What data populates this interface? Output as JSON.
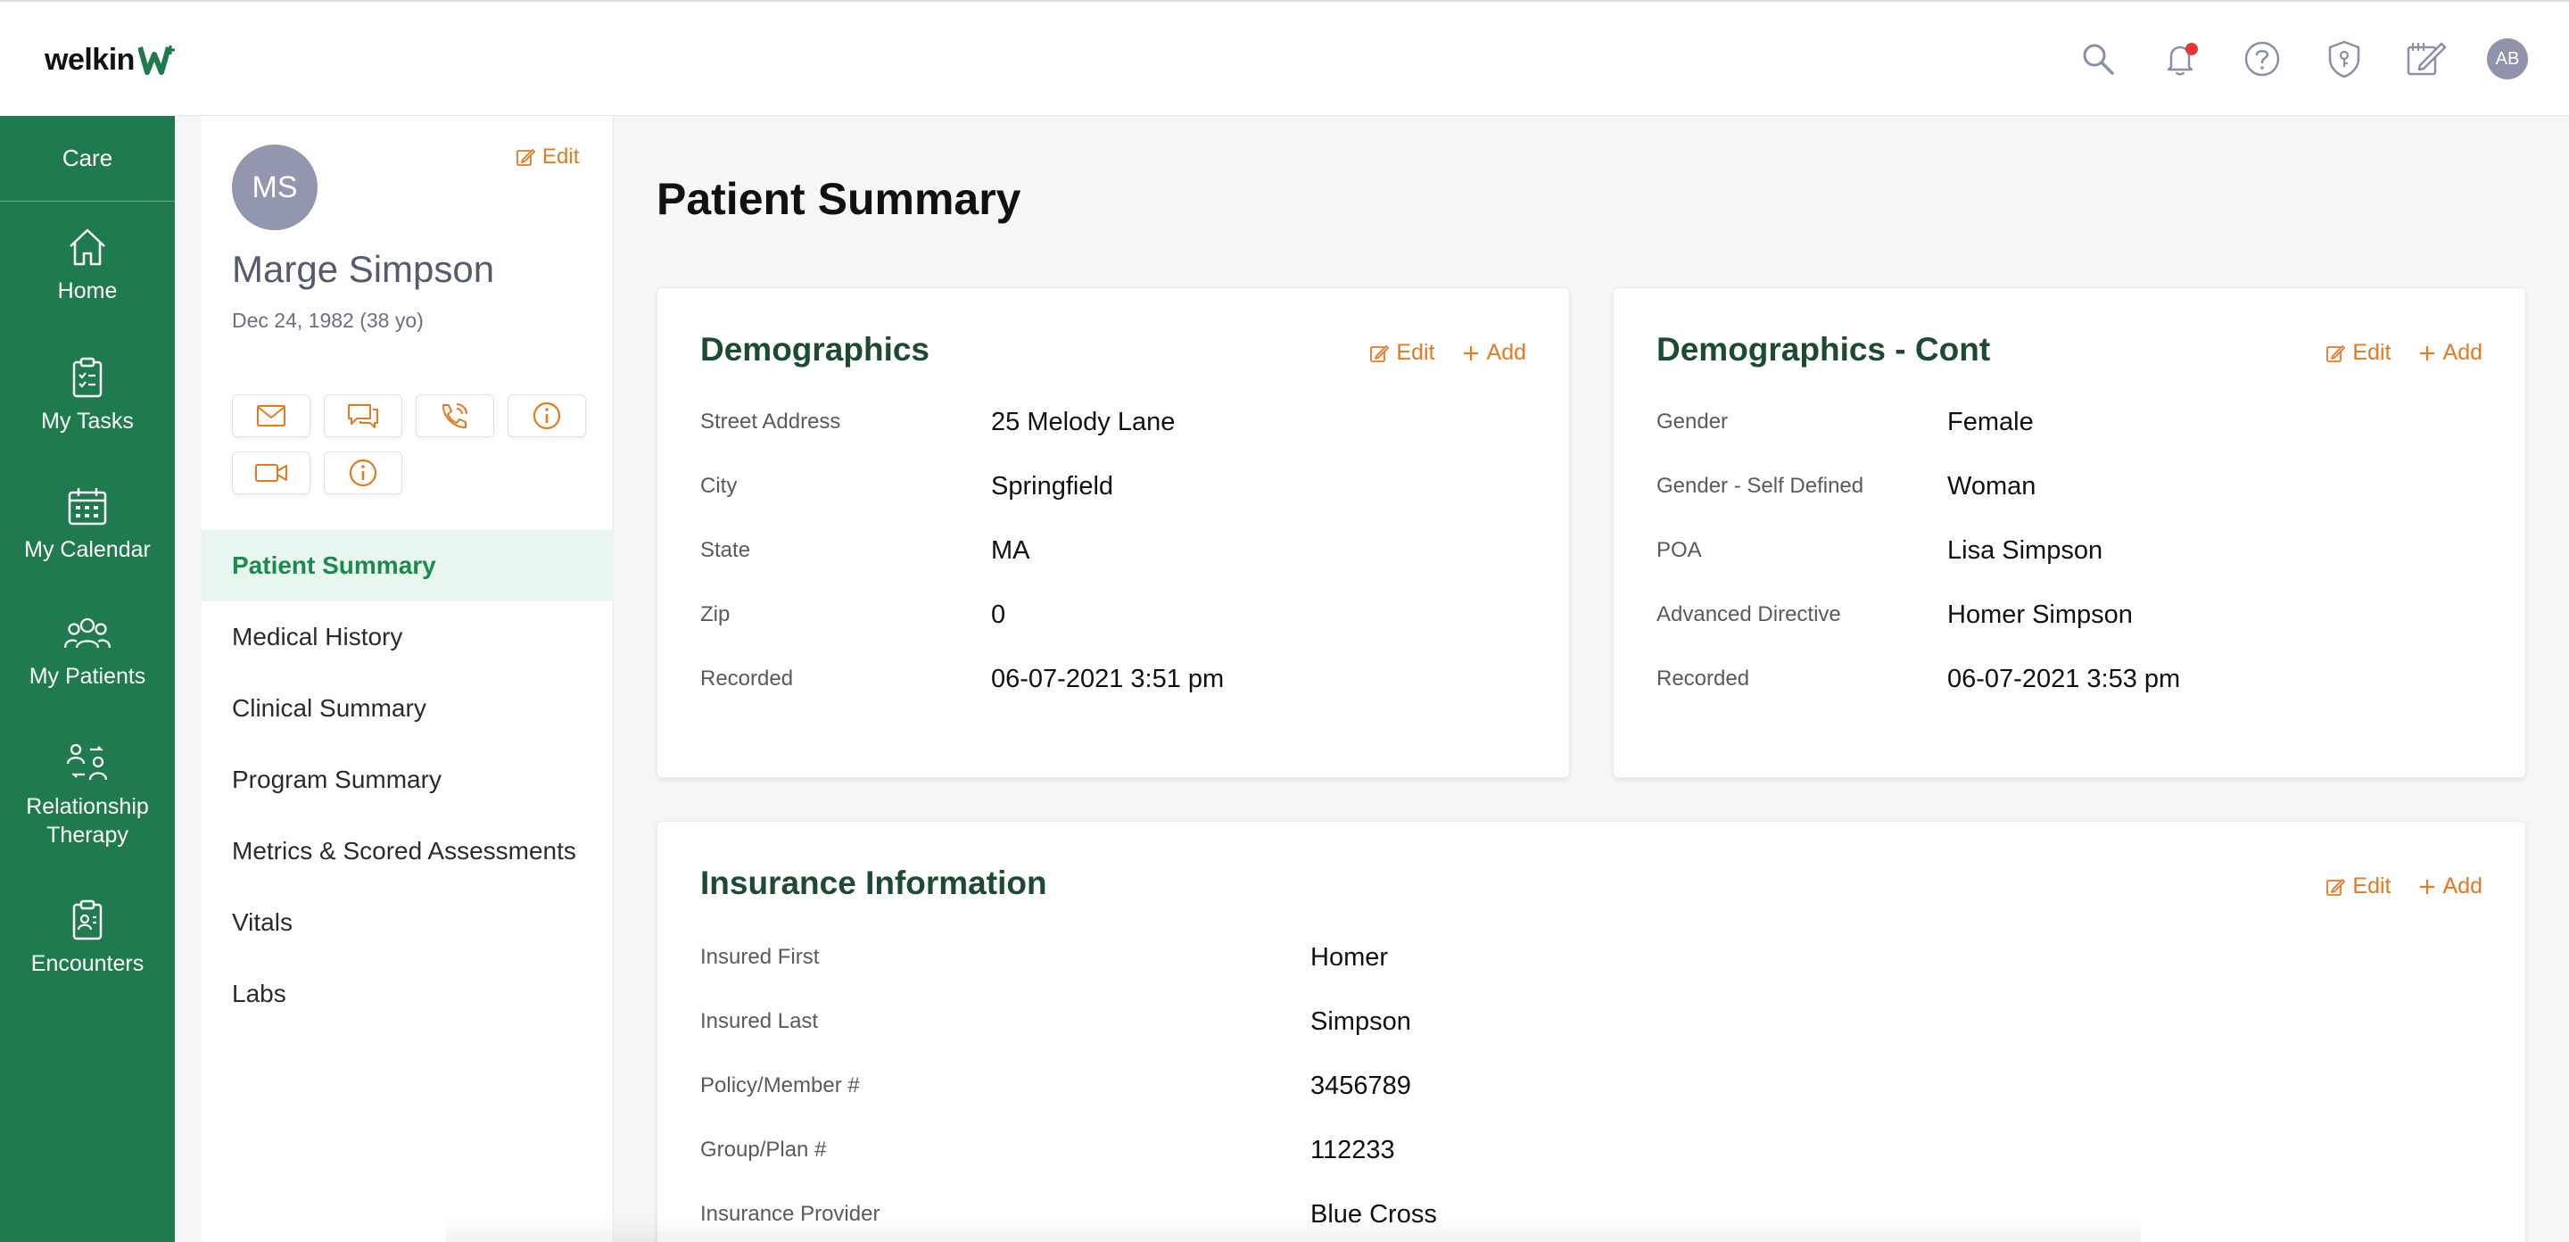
{
  "header": {
    "logo_text": "welkin",
    "icons": [
      "search-icon",
      "bell-icon",
      "help-icon",
      "shield-key-icon",
      "notepad-icon"
    ],
    "avatar_initials": "AB",
    "accent_color": "#1f7a4d",
    "notification_color": "#e53935"
  },
  "leftnav": {
    "title": "Care",
    "items": [
      {
        "label": "Home",
        "icon": "home-icon"
      },
      {
        "label": "My Tasks",
        "icon": "clipboard-icon"
      },
      {
        "label": "My Calendar",
        "icon": "calendar-icon"
      },
      {
        "label": "My Patients",
        "icon": "patients-icon"
      },
      {
        "label": "Relationship Therapy",
        "icon": "relationship-icon"
      },
      {
        "label": "Encounters",
        "icon": "encounters-icon"
      }
    ]
  },
  "patient": {
    "initials": "MS",
    "edit_label": "Edit",
    "name": "Marge Simpson",
    "dob": "Dec 24, 1982 (38 yo)",
    "actions": [
      "email-icon",
      "chat-icon",
      "phone-icon",
      "info-icon",
      "video-icon",
      "info-icon"
    ],
    "menu": [
      {
        "label": "Patient Summary",
        "active": true
      },
      {
        "label": "Medical History"
      },
      {
        "label": "Clinical Summary"
      },
      {
        "label": "Program Summary"
      },
      {
        "label": "Metrics & Scored Assessments"
      },
      {
        "label": "Vitals"
      },
      {
        "label": "Labs"
      }
    ]
  },
  "main": {
    "page_title": "Patient Summary",
    "edit_label": "Edit",
    "add_label": "Add",
    "demographics": {
      "title": "Demographics",
      "fields": [
        {
          "label": "Street Address",
          "value": "25 Melody Lane"
        },
        {
          "label": "City",
          "value": "Springfield"
        },
        {
          "label": "State",
          "value": "MA"
        },
        {
          "label": "Zip",
          "value": "0"
        },
        {
          "label": "Recorded",
          "value": "06-07-2021 3:51 pm"
        }
      ]
    },
    "demographics_cont": {
      "title": "Demographics - Cont",
      "fields": [
        {
          "label": "Gender",
          "value": "Female"
        },
        {
          "label": "Gender - Self Defined",
          "value": "Woman"
        },
        {
          "label": "POA",
          "value": "Lisa Simpson"
        },
        {
          "label": "Advanced Directive",
          "value": "Homer Simpson"
        },
        {
          "label": "Recorded",
          "value": "06-07-2021 3:53 pm"
        }
      ]
    },
    "insurance": {
      "title": "Insurance Information",
      "fields": [
        {
          "label": "Insured First",
          "value": "Homer"
        },
        {
          "label": "Insured Last",
          "value": "Simpson"
        },
        {
          "label": "Policy/Member #",
          "value": "3456789"
        },
        {
          "label": "Group/Plan #",
          "value": "112233"
        },
        {
          "label": "Insurance Provider",
          "value": "Blue Cross"
        }
      ]
    }
  }
}
